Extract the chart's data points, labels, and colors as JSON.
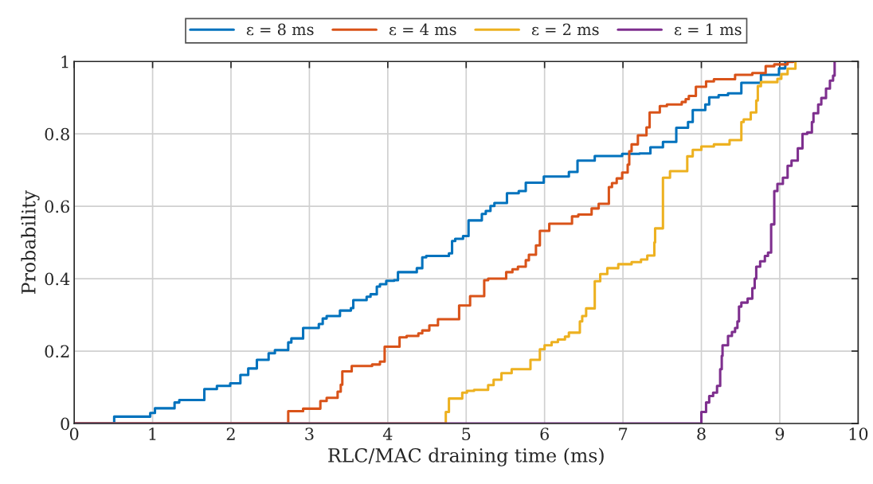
{
  "chart_data": {
    "type": "step",
    "xlabel": "RLC/MAC draining time (ms)",
    "ylabel": "Probability",
    "xlim": [
      0,
      10
    ],
    "ylim": [
      0,
      1
    ],
    "xticks": [
      0,
      1,
      2,
      3,
      4,
      5,
      6,
      7,
      8,
      9,
      10
    ],
    "yticks": [
      0,
      0.2,
      0.4,
      0.6,
      0.8,
      1
    ],
    "grid": true,
    "legend": "top",
    "line_style": "solid",
    "marker": "none",
    "series": [
      {
        "name": "ε = 8 ms",
        "color": "#0072bd",
        "x": [
          0,
          0.51,
          0.97,
          1.03,
          1.28,
          1.34,
          1.66,
          1.82,
          1.99,
          2.12,
          2.22,
          2.33,
          2.48,
          2.56,
          2.73,
          2.77,
          2.92,
          3.12,
          3.17,
          3.22,
          3.39,
          3.53,
          3.56,
          3.73,
          3.78,
          3.86,
          3.9,
          3.98,
          4.08,
          4.13,
          4.37,
          4.44,
          4.49,
          4.78,
          4.82,
          4.86,
          4.96,
          5.03,
          5.2,
          5.25,
          5.31,
          5.36,
          5.52,
          5.67,
          5.76,
          5.99,
          6.31,
          6.42,
          6.64,
          6.99,
          7.21,
          7.35,
          7.51,
          7.68,
          7.83,
          7.89,
          8.05,
          8.1,
          8.22,
          8.34,
          8.51,
          8.76,
          8.99,
          9.07
        ],
        "values": [
          0,
          0.019,
          0.029,
          0.042,
          0.058,
          0.065,
          0.095,
          0.104,
          0.111,
          0.134,
          0.152,
          0.176,
          0.194,
          0.203,
          0.224,
          0.235,
          0.264,
          0.275,
          0.29,
          0.297,
          0.312,
          0.319,
          0.341,
          0.35,
          0.357,
          0.378,
          0.385,
          0.394,
          0.396,
          0.418,
          0.429,
          0.459,
          0.463,
          0.47,
          0.504,
          0.51,
          0.518,
          0.561,
          0.579,
          0.587,
          0.601,
          0.609,
          0.636,
          0.642,
          0.665,
          0.682,
          0.695,
          0.726,
          0.739,
          0.745,
          0.746,
          0.763,
          0.778,
          0.817,
          0.833,
          0.866,
          0.881,
          0.901,
          0.907,
          0.912,
          0.941,
          0.963,
          0.981,
          1.0
        ]
      },
      {
        "name": "ε = 4 ms",
        "color": "#d95319",
        "x": [
          0,
          2.73,
          2.92,
          3.14,
          3.22,
          3.36,
          3.4,
          3.42,
          3.54,
          3.8,
          3.9,
          3.96,
          4.15,
          4.24,
          4.39,
          4.44,
          4.53,
          4.64,
          4.91,
          5.05,
          5.23,
          5.28,
          5.51,
          5.59,
          5.66,
          5.76,
          5.8,
          5.89,
          5.94,
          6.06,
          6.35,
          6.43,
          6.6,
          6.69,
          6.82,
          6.86,
          6.92,
          6.99,
          7.06,
          7.08,
          7.11,
          7.19,
          7.3,
          7.34,
          7.47,
          7.56,
          7.75,
          7.8,
          7.84,
          7.93,
          8.06,
          8.16,
          8.43,
          8.65,
          8.82,
          8.93,
          9.1,
          9.17
        ],
        "values": [
          0,
          0.034,
          0.041,
          0.062,
          0.071,
          0.088,
          0.107,
          0.144,
          0.159,
          0.163,
          0.171,
          0.212,
          0.238,
          0.242,
          0.249,
          0.257,
          0.271,
          0.288,
          0.326,
          0.352,
          0.396,
          0.4,
          0.418,
          0.426,
          0.433,
          0.451,
          0.466,
          0.492,
          0.532,
          0.552,
          0.572,
          0.577,
          0.594,
          0.607,
          0.653,
          0.664,
          0.677,
          0.693,
          0.715,
          0.752,
          0.771,
          0.796,
          0.818,
          0.859,
          0.877,
          0.881,
          0.888,
          0.896,
          0.905,
          0.93,
          0.945,
          0.951,
          0.963,
          0.968,
          0.987,
          0.992,
          0.999,
          1.0
        ]
      },
      {
        "name": "ε = 2 ms",
        "color": "#edb120",
        "x": [
          0,
          4.74,
          4.78,
          4.95,
          5.01,
          5.1,
          5.28,
          5.35,
          5.45,
          5.58,
          5.82,
          5.94,
          6.0,
          6.09,
          6.17,
          6.26,
          6.31,
          6.45,
          6.48,
          6.53,
          6.64,
          6.71,
          6.8,
          6.94,
          7.11,
          7.23,
          7.31,
          7.4,
          7.41,
          7.51,
          7.6,
          7.82,
          7.89,
          8.0,
          8.16,
          8.36,
          8.51,
          8.54,
          8.63,
          8.7,
          8.72,
          8.76,
          8.97,
          9.02,
          9.1,
          9.2
        ],
        "values": [
          0,
          0.032,
          0.069,
          0.085,
          0.09,
          0.093,
          0.106,
          0.121,
          0.139,
          0.15,
          0.176,
          0.205,
          0.216,
          0.225,
          0.232,
          0.24,
          0.251,
          0.282,
          0.297,
          0.318,
          0.393,
          0.413,
          0.429,
          0.44,
          0.446,
          0.453,
          0.464,
          0.5,
          0.539,
          0.679,
          0.697,
          0.738,
          0.756,
          0.765,
          0.771,
          0.783,
          0.833,
          0.84,
          0.859,
          0.892,
          0.932,
          0.943,
          0.952,
          0.965,
          0.98,
          1.0
        ]
      },
      {
        "name": "ε = 1 ms",
        "color": "#7e2f8e",
        "x": [
          0,
          8.0,
          8.06,
          8.1,
          8.15,
          8.2,
          8.24,
          8.26,
          8.27,
          8.34,
          8.39,
          8.43,
          8.46,
          8.48,
          8.51,
          8.59,
          8.65,
          8.68,
          8.7,
          8.75,
          8.81,
          8.85,
          8.89,
          8.93,
          8.97,
          9.04,
          9.1,
          9.15,
          9.23,
          9.29,
          9.35,
          9.41,
          9.43,
          9.49,
          9.53,
          9.59,
          9.64,
          9.68,
          9.7
        ],
        "values": [
          0,
          0.032,
          0.058,
          0.076,
          0.085,
          0.104,
          0.15,
          0.187,
          0.216,
          0.242,
          0.253,
          0.264,
          0.282,
          0.323,
          0.334,
          0.345,
          0.374,
          0.4,
          0.433,
          0.448,
          0.463,
          0.472,
          0.55,
          0.642,
          0.662,
          0.679,
          0.712,
          0.726,
          0.76,
          0.8,
          0.804,
          0.833,
          0.857,
          0.881,
          0.899,
          0.925,
          0.947,
          0.961,
          1.0
        ]
      }
    ]
  }
}
